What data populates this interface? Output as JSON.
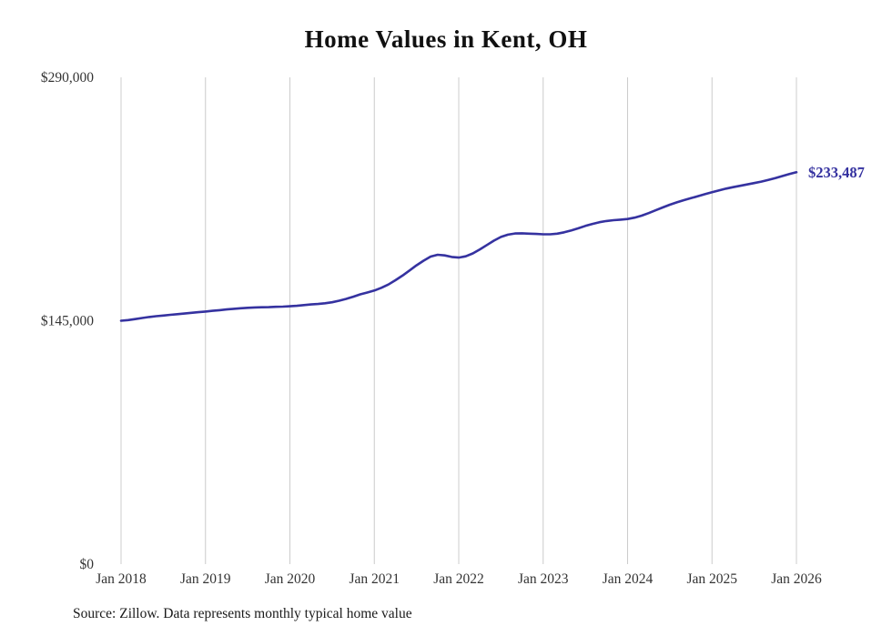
{
  "chart_data": {
    "type": "line",
    "title": "Home Values in Kent, OH",
    "source_note": "Source: Zillow. Data represents monthly typical home value",
    "series_name": "Typical home value",
    "x_start": "2018-01",
    "x_interval": "month",
    "x_tick_every": 12,
    "x_tick_labels": [
      "Jan 2018",
      "Jan 2019",
      "Jan 2020",
      "Jan 2021",
      "Jan 2022",
      "Jan 2023",
      "Jan 2024",
      "Jan 2025",
      "Jan 2026"
    ],
    "y_ticks": [
      {
        "value": 0,
        "label": "$0"
      },
      {
        "value": 145000,
        "label": "$145,000"
      },
      {
        "value": 290000,
        "label": "$290,000"
      }
    ],
    "ylim": [
      0,
      290000
    ],
    "grid": "vertical-only",
    "legend": "none",
    "end_label": "$233,487",
    "final_value": 233487,
    "line_color": "#3532a0",
    "grid_color": "#cccccc",
    "label_color": "#333333",
    "values": [
      145000,
      145400,
      146000,
      146600,
      147200,
      147700,
      148100,
      148500,
      148900,
      149300,
      149700,
      150100,
      150500,
      150900,
      151300,
      151700,
      152100,
      152400,
      152700,
      152900,
      153000,
      153100,
      153300,
      153400,
      153600,
      153900,
      154300,
      154700,
      155000,
      155400,
      156000,
      156900,
      158000,
      159300,
      160700,
      161800,
      163000,
      164600,
      166600,
      169100,
      171900,
      174900,
      178000,
      180800,
      183200,
      184300,
      183900,
      183000,
      182600,
      183400,
      185100,
      187500,
      190100,
      192700,
      194900,
      196300,
      197000,
      197100,
      196900,
      196700,
      196500,
      196500,
      196900,
      197700,
      198800,
      200100,
      201500,
      202700,
      203700,
      204400,
      204900,
      205200,
      205600,
      206400,
      207600,
      209100,
      210800,
      212500,
      214100,
      215500,
      216800,
      218000,
      219200,
      220400,
      221600,
      222700,
      223700,
      224600,
      225400,
      226200,
      227000,
      227900,
      228900,
      230000,
      231200,
      232400,
      233487
    ]
  }
}
